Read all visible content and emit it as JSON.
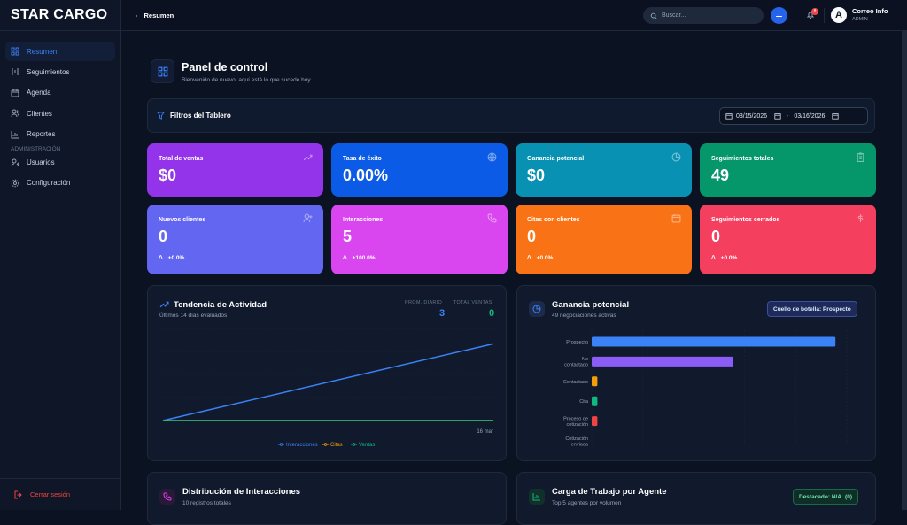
{
  "app": {
    "brand": "STAR CARGO"
  },
  "sidebar": {
    "items": [
      {
        "label": "Resumen",
        "icon": "dashboard-icon",
        "active": true
      },
      {
        "label": "Seguimientos",
        "icon": "tracking-icon"
      },
      {
        "label": "Agenda",
        "icon": "calendar-icon"
      },
      {
        "label": "Clientes",
        "icon": "users-icon"
      },
      {
        "label": "Reportes",
        "icon": "chart-icon"
      }
    ],
    "section_label": "ADMINISTRACIÓN",
    "admin_items": [
      {
        "label": "Usuarios",
        "icon": "user-admin-icon"
      },
      {
        "label": "Configuración",
        "icon": "gear-icon"
      }
    ],
    "logout_label": "Cerrar sesión"
  },
  "topbar": {
    "breadcrumb": "Resumen",
    "search_placeholder": "Buscar...",
    "notification_count": "8",
    "user_name": "Correo Info",
    "user_role": "ADMIN",
    "avatar_letter": "A"
  },
  "header": {
    "title": "Panel de control",
    "subtitle": "Bienvenido de nuevo. aquí está lo que sucede hoy."
  },
  "filters": {
    "title": "Filtros del Tablero",
    "date_from": "03/15/2026",
    "date_to": "03/16/2026",
    "separator": "-"
  },
  "stats_row1": [
    {
      "label": "Total de ventas",
      "value": "$0",
      "icon": "trend-up-icon",
      "color": "#9333ea"
    },
    {
      "label": "Tasa de éxito",
      "value": "0.00%",
      "icon": "globe-icon",
      "color": "#0b5be6"
    },
    {
      "label": "Ganancia potencial",
      "value": "$0",
      "icon": "pie-icon",
      "color": "#0891b2"
    },
    {
      "label": "Seguimientos totales",
      "value": "49",
      "icon": "clipboard-icon",
      "color": "#059669"
    }
  ],
  "stats_row2": [
    {
      "label": "Nuevos clientes",
      "value": "0",
      "delta": "+0.0%",
      "icon": "user-plus-icon",
      "color": "#6366f1"
    },
    {
      "label": "Interacciones",
      "value": "5",
      "delta": "+100.0%",
      "icon": "phone-icon",
      "color": "#d946ef"
    },
    {
      "label": "Citas con clientes",
      "value": "0",
      "delta": "+0.0%",
      "icon": "calendar-icon",
      "color": "#f97316"
    },
    {
      "label": "Seguimientos cerrados",
      "value": "0",
      "delta": "+0.0%",
      "icon": "dollar-icon",
      "color": "#f43f5e"
    }
  ],
  "activity": {
    "title": "Tendencia de Actividad",
    "subtitle": "Últimos 14 días evaluados",
    "avg_label": "PROM. DIARIO",
    "avg_value": "3",
    "total_label": "TOTAL VENTAS",
    "total_value": "0"
  },
  "potential": {
    "title": "Ganancia potencial",
    "subtitle": "49 negociaciones activas",
    "bottleneck": "Cuello de botella: Prospecto"
  },
  "distribution": {
    "title": "Distribución de Interacciones",
    "subtitle": "10 registros totales"
  },
  "workload": {
    "title": "Carga de Trabajo por Agente",
    "subtitle": "Top 5 agentes por volumen",
    "featured": "Destacado: N/A",
    "featured_count": "(0)"
  },
  "chart_data": [
    {
      "type": "line",
      "x_end_label": "16 mar",
      "series": [
        {
          "name": "Interacciones",
          "color": "#3b82f6",
          "values": [
            0,
            5
          ]
        },
        {
          "name": "Citas",
          "color": "#f59e0b",
          "values": [
            0,
            0
          ]
        },
        {
          "name": "Ventas",
          "color": "#10b981",
          "values": [
            0,
            0
          ]
        }
      ],
      "ylim": [
        0,
        6
      ]
    },
    {
      "type": "bar",
      "orientation": "horizontal",
      "categories": [
        "Prospecto",
        "No contactado",
        "Contactado",
        "Cita",
        "Proceso de cotización",
        "Cotización enviada"
      ],
      "values": [
        43,
        25,
        1,
        1,
        1,
        0
      ],
      "colors": [
        "#3b82f6",
        "#8b5cf6",
        "#f59e0b",
        "#10b981",
        "#ef4444",
        "#64748b"
      ],
      "xlim": [
        0,
        45
      ]
    }
  ]
}
